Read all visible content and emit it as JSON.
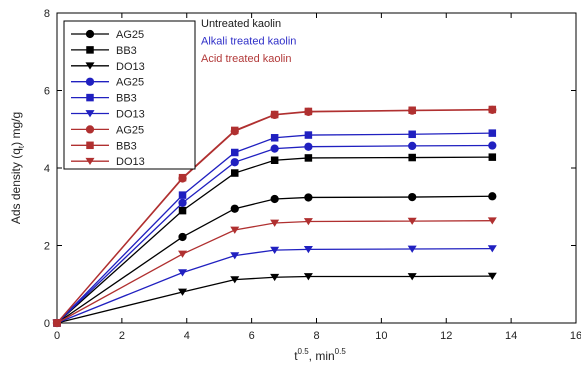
{
  "chart_data": {
    "type": "line",
    "title": "",
    "xlabel": "t 0.5 , min0.5",
    "xlabel_parts": {
      "base": "t",
      "base_sup": "0.5",
      "unit": ", min",
      "unit_sup": "0.5"
    },
    "ylabel": "Ads density (qt) mg/g",
    "ylabel_parts": {
      "pre": "Ads density (q",
      "sub": "t",
      "post": ") mg/g"
    },
    "xlim": [
      0,
      16
    ],
    "ylim": [
      0,
      8
    ],
    "xticks": [
      0,
      2,
      4,
      6,
      8,
      10,
      12,
      14,
      16
    ],
    "yticks": [
      0,
      2,
      4,
      6,
      8
    ],
    "grid": false,
    "legend_position": "top-left",
    "group_labels": [
      {
        "text": "Untreated kaolin",
        "color": "#1a1a1a"
      },
      {
        "text": "Alkali treated kaolin",
        "color": "#2f2fc8"
      },
      {
        "text": "Acid treated kaolin",
        "color": "#b23a3a"
      }
    ],
    "x": [
      0,
      3.87,
      5.48,
      6.71,
      7.75,
      10.95,
      13.42
    ],
    "series": [
      {
        "name": "AG25",
        "group": "Untreated kaolin",
        "marker": "circle",
        "color": "#000000",
        "values": [
          0,
          2.22,
          2.95,
          3.2,
          3.24,
          3.25,
          3.27
        ]
      },
      {
        "name": "BB3",
        "group": "Untreated kaolin",
        "marker": "square",
        "color": "#000000",
        "values": [
          0,
          2.9,
          3.87,
          4.2,
          4.26,
          4.27,
          4.28
        ]
      },
      {
        "name": "DO13",
        "group": "Untreated kaolin",
        "marker": "triangle-down",
        "color": "#000000",
        "values": [
          0,
          0.8,
          1.12,
          1.18,
          1.2,
          1.2,
          1.21
        ]
      },
      {
        "name": "AG25",
        "group": "Alkali treated kaolin",
        "marker": "circle",
        "color": "#2020c0",
        "values": [
          0,
          3.1,
          4.15,
          4.5,
          4.55,
          4.57,
          4.58
        ]
      },
      {
        "name": "BB3",
        "group": "Alkali treated kaolin",
        "marker": "square",
        "color": "#2020c0",
        "values": [
          0,
          3.3,
          4.4,
          4.78,
          4.85,
          4.87,
          4.9
        ]
      },
      {
        "name": "DO13",
        "group": "Alkali treated kaolin",
        "marker": "triangle-down",
        "color": "#2020c0",
        "values": [
          0,
          1.3,
          1.74,
          1.88,
          1.9,
          1.91,
          1.92
        ]
      },
      {
        "name": "AG25",
        "group": "Acid treated kaolin",
        "marker": "circle",
        "color": "#b03030",
        "values": [
          0,
          3.73,
          4.95,
          5.37,
          5.45,
          5.48,
          5.5
        ]
      },
      {
        "name": "BB3",
        "group": "Acid treated kaolin",
        "marker": "square",
        "color": "#b03030",
        "values": [
          0,
          3.75,
          4.97,
          5.38,
          5.46,
          5.49,
          5.51
        ]
      },
      {
        "name": "DO13",
        "group": "Acid treated kaolin",
        "marker": "triangle-down",
        "color": "#b03030",
        "values": [
          0,
          1.78,
          2.4,
          2.58,
          2.62,
          2.63,
          2.64
        ]
      }
    ]
  }
}
